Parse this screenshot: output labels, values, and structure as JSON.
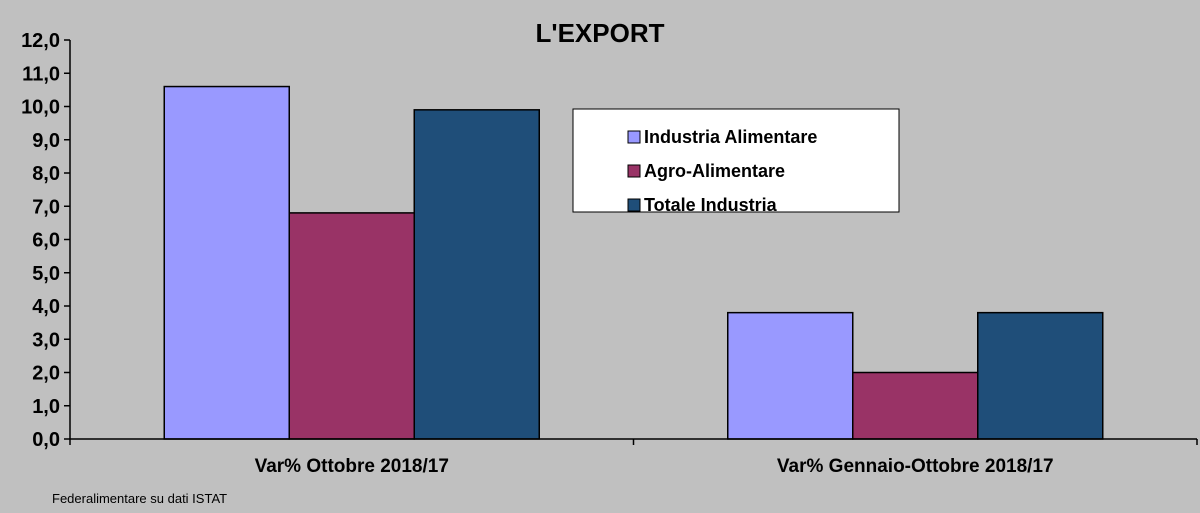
{
  "chart_data": {
    "type": "bar",
    "title": "L'EXPORT",
    "categories": [
      "Var% Ottobre 2018/17",
      "Var% Gennaio-Ottobre 2018/17"
    ],
    "series": [
      {
        "name": "Industria Alimentare",
        "values": [
          10.6,
          3.8
        ],
        "color": "#9999ff"
      },
      {
        "name": "Agro-Alimentare",
        "values": [
          6.8,
          2.0
        ],
        "color": "#993366"
      },
      {
        "name": "Totale Industria",
        "values": [
          9.9,
          3.8
        ],
        "color": "#1f4e79"
      }
    ],
    "ylim": [
      0,
      12
    ],
    "yticks": [
      "0,0",
      "1,0",
      "2,0",
      "3,0",
      "4,0",
      "5,0",
      "6,0",
      "7,0",
      "8,0",
      "9,0",
      "10,0",
      "11,0",
      "12,0"
    ],
    "grid": false,
    "legend_position": "top-right",
    "xlabel": "",
    "ylabel": "",
    "source": "Federalimentare su dati ISTAT"
  }
}
